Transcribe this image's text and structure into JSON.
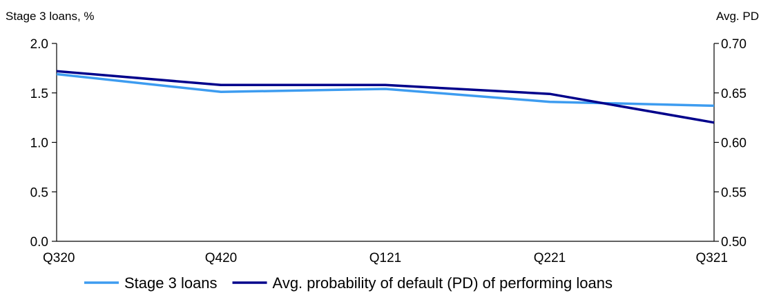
{
  "chart_data": {
    "type": "line",
    "categories": [
      "Q320",
      "Q420",
      "Q121",
      "Q221",
      "Q321"
    ],
    "left_axis": {
      "label": "Stage 3 loans, %",
      "range": [
        0.0,
        2.0
      ],
      "ticks": [
        "0.0",
        "0.5",
        "1.0",
        "1.5",
        "2.0"
      ]
    },
    "right_axis": {
      "label": "Avg. PD",
      "range": [
        0.5,
        0.7
      ],
      "ticks": [
        "0.50",
        "0.55",
        "0.60",
        "0.65",
        "0.70"
      ]
    },
    "series": [
      {
        "name": "Stage 3 loans",
        "axis": "left",
        "color": "#3d9cf0",
        "values": [
          1.69,
          1.51,
          1.54,
          1.41,
          1.37
        ]
      },
      {
        "name": "Avg. probability of default (PD) of performing loans",
        "axis": "right",
        "color": "#00008b",
        "values": [
          0.672,
          0.658,
          0.658,
          0.649,
          0.62
        ]
      }
    ],
    "grid": false,
    "legend_position": "bottom"
  }
}
